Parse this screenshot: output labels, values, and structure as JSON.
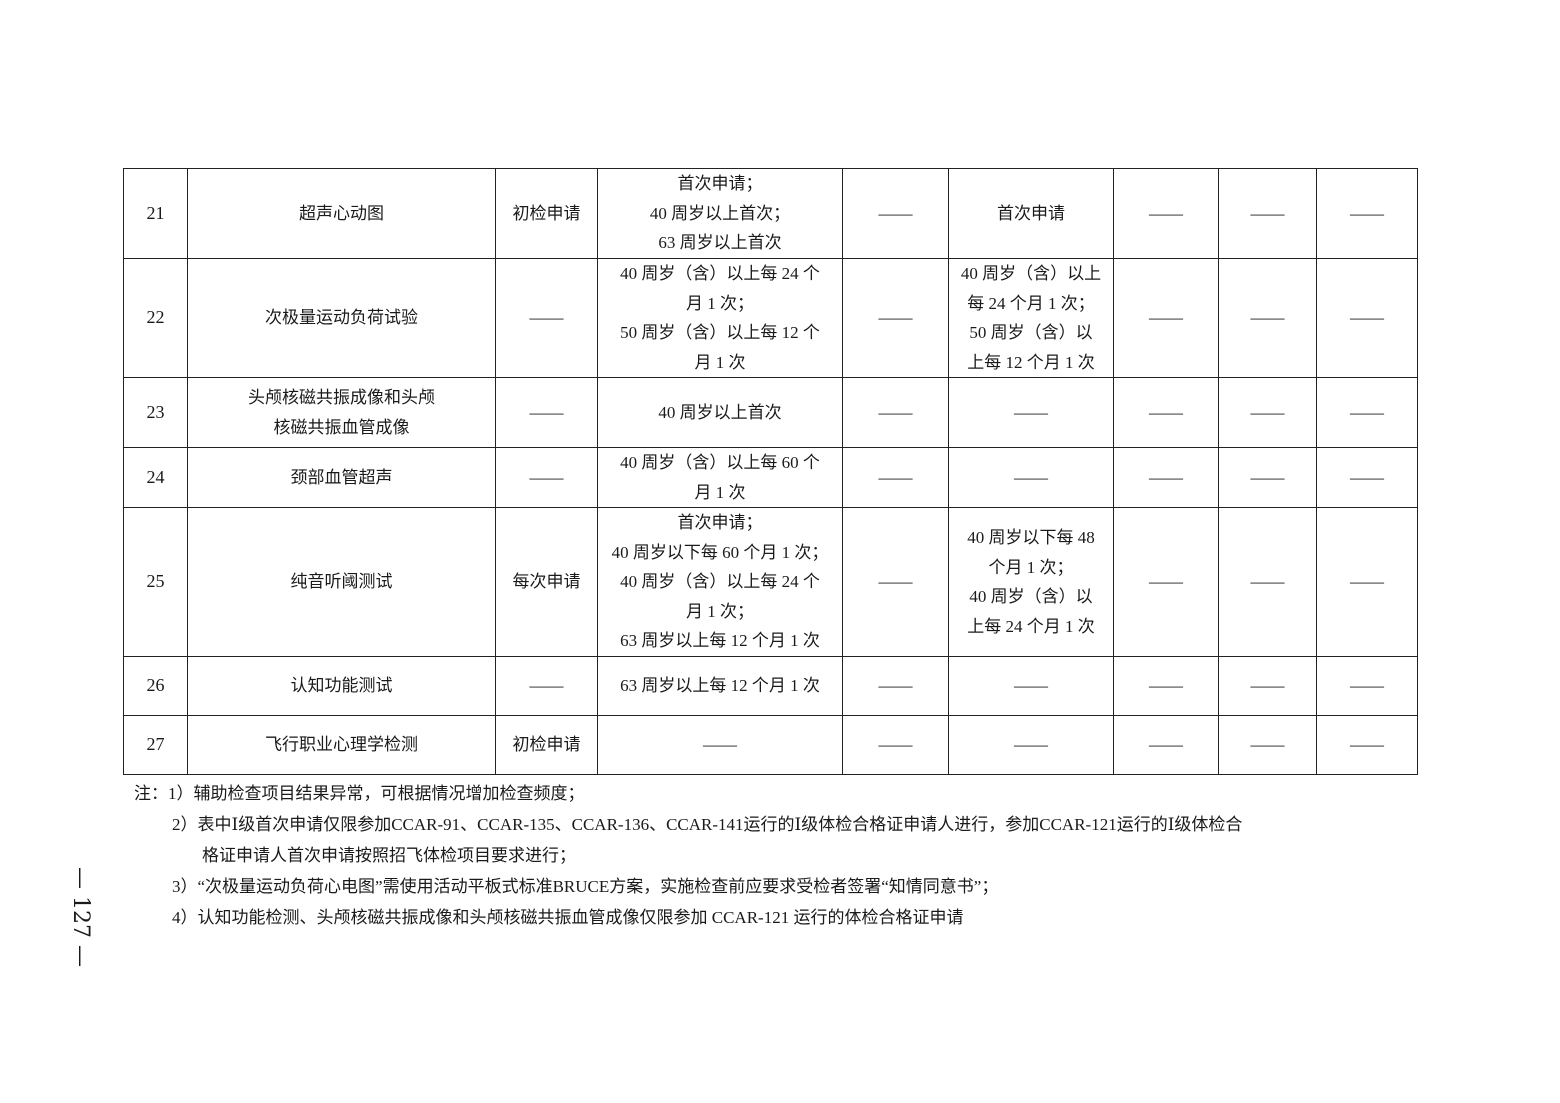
{
  "table": {
    "rows": [
      {
        "no": "21",
        "item": "超声心动图",
        "c3": "初检申请",
        "c4": "首次申请；\n40 周岁以上首次；\n63 周岁以上首次",
        "c5": "——",
        "c6": "首次申请",
        "c7": "——",
        "c8": "——",
        "c9": "——"
      },
      {
        "no": "22",
        "item": "次极量运动负荷试验",
        "c3": "——",
        "c4": "40 周岁（含）以上每 24 个\n月 1 次；\n50 周岁（含）以上每 12 个\n月 1 次",
        "c5": "——",
        "c6": "40 周岁（含）以上\n每 24 个月 1 次；\n50 周岁（含）以\n上每 12 个月 1 次",
        "c7": "——",
        "c8": "——",
        "c9": "——"
      },
      {
        "no": "23",
        "item": "头颅核磁共振成像和头颅\n核磁共振血管成像",
        "c3": "——",
        "c4": "40 周岁以上首次",
        "c5": "——",
        "c6": "——",
        "c7": "——",
        "c8": "——",
        "c9": "——"
      },
      {
        "no": "24",
        "item": "颈部血管超声",
        "c3": "——",
        "c4": "40 周岁（含）以上每 60 个\n月 1 次",
        "c5": "——",
        "c6": "——",
        "c7": "——",
        "c8": "——",
        "c9": "——"
      },
      {
        "no": "25",
        "item": "纯音听阈测试",
        "c3": "每次申请",
        "c4": "首次申请；\n40 周岁以下每 60 个月 1 次；\n40 周岁（含）以上每 24 个\n月 1 次；\n63 周岁以上每 12 个月 1 次",
        "c5": "——",
        "c6": "40 周岁以下每 48\n个月 1 次；\n40 周岁（含）以\n上每 24 个月 1 次",
        "c7": "——",
        "c8": "——",
        "c9": "——"
      },
      {
        "no": "26",
        "item": "认知功能测试",
        "c3": "——",
        "c4": "63 周岁以上每 12 个月 1 次",
        "c5": "——",
        "c6": "——",
        "c7": "——",
        "c8": "——",
        "c9": "——"
      },
      {
        "no": "27",
        "item": "飞行职业心理学检测",
        "c3": "初检申请",
        "c4": "——",
        "c5": "——",
        "c6": "——",
        "c7": "——",
        "c8": "——",
        "c9": "——"
      }
    ]
  },
  "notes": {
    "n1": "注：1）辅助检查项目结果异常，可根据情况增加检查频度；",
    "n2a": "2）表中Ⅰ级首次申请仅限参加CCAR-91、CCAR-135、CCAR-136、CCAR-141运行的Ⅰ级体检合格证申请人进行，参加CCAR-121运行的Ⅰ级体检合",
    "n2b": "格证申请人首次申请按照招飞体检项目要求进行；",
    "n3": "3）“次极量运动负荷心电图”需使用活动平板式标准BRUCE方案，实施检查前应要求受检者签署“知情同意书”；",
    "n4": "4）认知功能检测、头颅核磁共振成像和头颅核磁共振血管成像仅限参加 CCAR-121 运行的体检合格证申请"
  },
  "page_number": "— 127 —"
}
